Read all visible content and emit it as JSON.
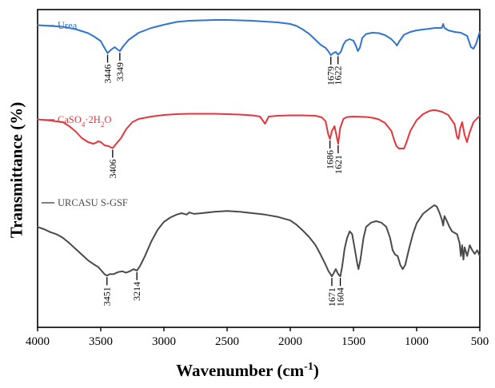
{
  "chart_data": {
    "type": "line",
    "xlabel_main": "Wavenumber (cm",
    "xlabel_sup": "-1",
    "xlabel_tail": ")",
    "ylabel": "Transmittance (%)",
    "xlim": [
      4000,
      500
    ],
    "x_reversed": true,
    "xticks": [
      4000,
      3500,
      3000,
      2500,
      2000,
      1500,
      1000,
      500
    ],
    "grid": false,
    "legend": "inline labels above each trace",
    "series": [
      {
        "name": "Urea",
        "color": "#2f74d0",
        "label_parts": [
          "Urea"
        ],
        "points": [
          [
            4000,
            0.23
          ],
          [
            3900,
            0.25
          ],
          [
            3800,
            0.27
          ],
          [
            3700,
            0.33
          ],
          [
            3600,
            0.43
          ],
          [
            3550,
            0.52
          ],
          [
            3500,
            0.63
          ],
          [
            3470,
            0.8
          ],
          [
            3446,
            0.93
          ],
          [
            3420,
            0.85
          ],
          [
            3390,
            0.78
          ],
          [
            3370,
            0.83
          ],
          [
            3349,
            0.88
          ],
          [
            3320,
            0.75
          ],
          [
            3280,
            0.6
          ],
          [
            3200,
            0.42
          ],
          [
            3100,
            0.3
          ],
          [
            3000,
            0.22
          ],
          [
            2900,
            0.15
          ],
          [
            2800,
            0.12
          ],
          [
            2700,
            0.11
          ],
          [
            2600,
            0.1
          ],
          [
            2500,
            0.1
          ],
          [
            2400,
            0.11
          ],
          [
            2300,
            0.12
          ],
          [
            2200,
            0.14
          ],
          [
            2100,
            0.16
          ],
          [
            2000,
            0.2
          ],
          [
            1950,
            0.25
          ],
          [
            1900,
            0.34
          ],
          [
            1850,
            0.45
          ],
          [
            1800,
            0.6
          ],
          [
            1760,
            0.72
          ],
          [
            1720,
            0.8
          ],
          [
            1700,
            0.88
          ],
          [
            1679,
            0.98
          ],
          [
            1660,
            0.93
          ],
          [
            1640,
            0.9
          ],
          [
            1622,
            0.97
          ],
          [
            1600,
            0.9
          ],
          [
            1580,
            0.72
          ],
          [
            1560,
            0.62
          ],
          [
            1530,
            0.58
          ],
          [
            1500,
            0.62
          ],
          [
            1480,
            0.75
          ],
          [
            1465,
            0.88
          ],
          [
            1450,
            0.8
          ],
          [
            1430,
            0.55
          ],
          [
            1400,
            0.45
          ],
          [
            1350,
            0.42
          ],
          [
            1300,
            0.43
          ],
          [
            1250,
            0.48
          ],
          [
            1200,
            0.58
          ],
          [
            1170,
            0.68
          ],
          [
            1155,
            0.74
          ],
          [
            1140,
            0.65
          ],
          [
            1100,
            0.47
          ],
          [
            1050,
            0.4
          ],
          [
            1000,
            0.36
          ],
          [
            950,
            0.34
          ],
          [
            900,
            0.32
          ],
          [
            850,
            0.3
          ],
          [
            800,
            0.3
          ],
          [
            790,
            0.2
          ],
          [
            780,
            0.3
          ],
          [
            750,
            0.36
          ],
          [
            700,
            0.4
          ],
          [
            650,
            0.42
          ],
          [
            600,
            0.5
          ],
          [
            570,
            0.78
          ],
          [
            550,
            0.82
          ],
          [
            530,
            0.7
          ],
          [
            510,
            0.5
          ],
          [
            500,
            0.4
          ]
        ],
        "annotations": [
          3446,
          3349,
          1679,
          1622
        ]
      },
      {
        "name": "CaSO4·2H2O",
        "color": "#e8353c",
        "label_parts": [
          "CaSO",
          "4",
          "·2H",
          "2",
          "O"
        ],
        "points": [
          [
            4000,
            0.23
          ],
          [
            3900,
            0.26
          ],
          [
            3800,
            0.3
          ],
          [
            3750,
            0.4
          ],
          [
            3700,
            0.53
          ],
          [
            3650,
            0.7
          ],
          [
            3600,
            0.8
          ],
          [
            3560,
            0.84
          ],
          [
            3540,
            0.82
          ],
          [
            3520,
            0.78
          ],
          [
            3500,
            0.8
          ],
          [
            3470,
            0.88
          ],
          [
            3440,
            0.9
          ],
          [
            3406,
            0.95
          ],
          [
            3380,
            0.85
          ],
          [
            3340,
            0.7
          ],
          [
            3300,
            0.48
          ],
          [
            3250,
            0.3
          ],
          [
            3200,
            0.22
          ],
          [
            3100,
            0.16
          ],
          [
            3000,
            0.12
          ],
          [
            2900,
            0.1
          ],
          [
            2800,
            0.09
          ],
          [
            2700,
            0.09
          ],
          [
            2600,
            0.09
          ],
          [
            2500,
            0.1
          ],
          [
            2400,
            0.11
          ],
          [
            2300,
            0.13
          ],
          [
            2240,
            0.16
          ],
          [
            2200,
            0.34
          ],
          [
            2170,
            0.16
          ],
          [
            2100,
            0.14
          ],
          [
            2000,
            0.13
          ],
          [
            1900,
            0.13
          ],
          [
            1800,
            0.14
          ],
          [
            1750,
            0.18
          ],
          [
            1720,
            0.28
          ],
          [
            1700,
            0.6
          ],
          [
            1686,
            0.72
          ],
          [
            1670,
            0.52
          ],
          [
            1650,
            0.4
          ],
          [
            1640,
            0.55
          ],
          [
            1621,
            0.84
          ],
          [
            1605,
            0.45
          ],
          [
            1580,
            0.22
          ],
          [
            1550,
            0.17
          ],
          [
            1500,
            0.16
          ],
          [
            1400,
            0.17
          ],
          [
            1350,
            0.19
          ],
          [
            1300,
            0.23
          ],
          [
            1250,
            0.32
          ],
          [
            1200,
            0.52
          ],
          [
            1180,
            0.73
          ],
          [
            1160,
            0.9
          ],
          [
            1140,
            0.96
          ],
          [
            1120,
            0.96
          ],
          [
            1100,
            0.96
          ],
          [
            1080,
            0.8
          ],
          [
            1050,
            0.52
          ],
          [
            1000,
            0.25
          ],
          [
            950,
            0.1
          ],
          [
            900,
            0.02
          ],
          [
            870,
            0.0
          ],
          [
            850,
            0.0
          ],
          [
            800,
            0.04
          ],
          [
            750,
            0.12
          ],
          [
            700,
            0.35
          ],
          [
            680,
            0.68
          ],
          [
            669,
            0.72
          ],
          [
            655,
            0.45
          ],
          [
            640,
            0.3
          ],
          [
            620,
            0.62
          ],
          [
            602,
            0.8
          ],
          [
            580,
            0.55
          ],
          [
            550,
            0.3
          ],
          [
            520,
            0.2
          ],
          [
            500,
            0.15
          ]
        ],
        "annotations": [
          3406,
          1686,
          1621
        ]
      },
      {
        "name": "URCASU S-GSF",
        "color": "#4a4a4a",
        "label_parts": [
          "URCASU S-GSF"
        ],
        "points": [
          [
            4000,
            0.3
          ],
          [
            3950,
            0.33
          ],
          [
            3900,
            0.37
          ],
          [
            3850,
            0.4
          ],
          [
            3800,
            0.45
          ],
          [
            3750,
            0.52
          ],
          [
            3700,
            0.6
          ],
          [
            3650,
            0.68
          ],
          [
            3600,
            0.76
          ],
          [
            3550,
            0.82
          ],
          [
            3520,
            0.85
          ],
          [
            3500,
            0.89
          ],
          [
            3470,
            0.95
          ],
          [
            3451,
            0.97
          ],
          [
            3430,
            0.95
          ],
          [
            3400,
            0.95
          ],
          [
            3360,
            0.92
          ],
          [
            3330,
            0.91
          ],
          [
            3300,
            0.93
          ],
          [
            3270,
            0.91
          ],
          [
            3240,
            0.88
          ],
          [
            3214,
            0.9
          ],
          [
            3190,
            0.84
          ],
          [
            3150,
            0.7
          ],
          [
            3100,
            0.5
          ],
          [
            3050,
            0.34
          ],
          [
            3000,
            0.23
          ],
          [
            2950,
            0.17
          ],
          [
            2900,
            0.13
          ],
          [
            2860,
            0.11
          ],
          [
            2820,
            0.13
          ],
          [
            2800,
            0.1
          ],
          [
            2760,
            0.12
          ],
          [
            2700,
            0.11
          ],
          [
            2600,
            0.09
          ],
          [
            2500,
            0.08
          ],
          [
            2400,
            0.09
          ],
          [
            2300,
            0.11
          ],
          [
            2200,
            0.13
          ],
          [
            2100,
            0.16
          ],
          [
            2000,
            0.21
          ],
          [
            1950,
            0.27
          ],
          [
            1900,
            0.35
          ],
          [
            1850,
            0.44
          ],
          [
            1800,
            0.55
          ],
          [
            1760,
            0.68
          ],
          [
            1720,
            0.82
          ],
          [
            1700,
            0.9
          ],
          [
            1671,
            0.98
          ],
          [
            1655,
            0.93
          ],
          [
            1640,
            0.88
          ],
          [
            1620,
            0.95
          ],
          [
            1604,
            0.98
          ],
          [
            1590,
            0.85
          ],
          [
            1570,
            0.6
          ],
          [
            1550,
            0.45
          ],
          [
            1530,
            0.36
          ],
          [
            1510,
            0.4
          ],
          [
            1490,
            0.6
          ],
          [
            1470,
            0.8
          ],
          [
            1460,
            0.88
          ],
          [
            1445,
            0.75
          ],
          [
            1420,
            0.45
          ],
          [
            1400,
            0.3
          ],
          [
            1360,
            0.24
          ],
          [
            1320,
            0.22
          ],
          [
            1280,
            0.24
          ],
          [
            1240,
            0.3
          ],
          [
            1210,
            0.45
          ],
          [
            1190,
            0.62
          ],
          [
            1170,
            0.68
          ],
          [
            1150,
            0.7
          ],
          [
            1130,
            0.82
          ],
          [
            1110,
            0.88
          ],
          [
            1090,
            0.82
          ],
          [
            1060,
            0.6
          ],
          [
            1030,
            0.4
          ],
          [
            1000,
            0.25
          ],
          [
            950,
            0.12
          ],
          [
            900,
            0.05
          ],
          [
            860,
            0.0
          ],
          [
            840,
            0.02
          ],
          [
            820,
            0.1
          ],
          [
            800,
            0.2
          ],
          [
            790,
            0.28
          ],
          [
            780,
            0.15
          ],
          [
            760,
            0.22
          ],
          [
            740,
            0.3
          ],
          [
            720,
            0.36
          ],
          [
            700,
            0.38
          ],
          [
            680,
            0.4
          ],
          [
            660,
            0.52
          ],
          [
            650,
            0.7
          ],
          [
            640,
            0.55
          ],
          [
            630,
            0.75
          ],
          [
            620,
            0.58
          ],
          [
            600,
            0.7
          ],
          [
            580,
            0.55
          ],
          [
            560,
            0.62
          ],
          [
            540,
            0.67
          ],
          [
            520,
            0.62
          ],
          [
            500,
            0.7
          ]
        ],
        "annotations": [
          3451,
          3214,
          1671,
          1604
        ]
      }
    ]
  }
}
